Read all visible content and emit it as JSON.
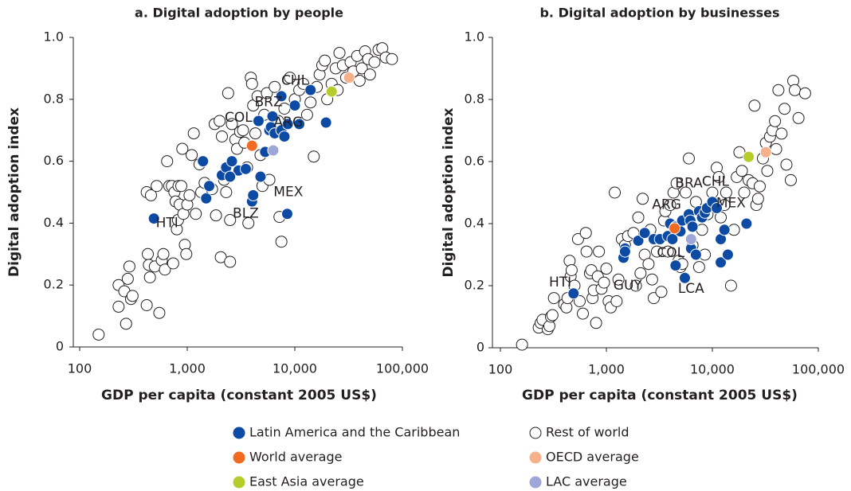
{
  "chart_data": [
    {
      "type": "scatter",
      "title": "a. Digital adoption by people",
      "xlabel": "GDP per capita (constant 2005 US$)",
      "ylabel": "Digital adoption index",
      "xscale": "log",
      "xlim": [
        100,
        100000
      ],
      "xticks": [
        100,
        {
          "value": 1000,
          "label": "1,000"
        },
        {
          "value": 10000,
          "label": "10,000"
        },
        {
          "value": 100000,
          "label": "100,000"
        }
      ],
      "ylim": [
        0,
        1
      ],
      "yticks": [
        0,
        0.2,
        0.4,
        0.6,
        0.8,
        {
          "value": 1,
          "label": "1.0"
        }
      ],
      "series": [
        {
          "name": "Latin America and the Caribbean",
          "color": "#0d4aa3",
          "x": [
            490,
            1400,
            1500,
            1600,
            2100,
            2300,
            3000,
            3500,
            4000,
            4100,
            4800,
            4600,
            5300,
            5800,
            6000,
            6200,
            6500,
            7500,
            8000,
            8600,
            10000,
            11000,
            8500,
            7500,
            14000,
            19500,
            2600,
            2500
          ],
          "y": [
            0.415,
            0.6,
            0.48,
            0.52,
            0.555,
            0.58,
            0.57,
            0.575,
            0.47,
            0.49,
            0.55,
            0.73,
            0.63,
            0.7,
            0.71,
            0.745,
            0.69,
            0.7,
            0.68,
            0.72,
            0.78,
            0.72,
            0.43,
            0.81,
            0.83,
            0.725,
            0.6,
            0.55
          ]
        },
        {
          "name": "Rest of world",
          "color": "#ffffff",
          "x": [
            150,
            230,
            230,
            260,
            270,
            280,
            290,
            300,
            310,
            420,
            420,
            430,
            440,
            450,
            460,
            500,
            520,
            550,
            580,
            600,
            620,
            650,
            680,
            720,
            740,
            760,
            780,
            800,
            820,
            830,
            850,
            880,
            900,
            920,
            950,
            980,
            1000,
            1050,
            1100,
            1150,
            1200,
            1300,
            1350,
            1450,
            1700,
            1800,
            1850,
            2000,
            2050,
            2100,
            2200,
            2300,
            2400,
            2500,
            2500,
            2600,
            2800,
            2900,
            3100,
            3300,
            3400,
            3600,
            3700,
            3900,
            4000,
            4100,
            4300,
            4500,
            4800,
            5000,
            5200,
            5500,
            5800,
            6500,
            7000,
            7200,
            7500,
            8000,
            9000,
            10000,
            11000,
            12000,
            13000,
            14000,
            15000,
            16000,
            17000,
            18000,
            19000,
            20000,
            22000,
            24000,
            25000,
            26000,
            28000,
            30000,
            33000,
            35000,
            38000,
            40000,
            42000,
            45000,
            48000,
            50000,
            55000,
            60000,
            65000,
            70000,
            80000
          ],
          "y": [
            0.04,
            0.13,
            0.2,
            0.18,
            0.075,
            0.22,
            0.26,
            0.155,
            0.165,
            0.5,
            0.135,
            0.3,
            0.265,
            0.225,
            0.49,
            0.26,
            0.52,
            0.11,
            0.28,
            0.3,
            0.25,
            0.6,
            0.52,
            0.52,
            0.27,
            0.5,
            0.47,
            0.38,
            0.41,
            0.52,
            0.46,
            0.52,
            0.64,
            0.43,
            0.33,
            0.3,
            0.46,
            0.49,
            0.62,
            0.69,
            0.43,
            0.59,
            0.5,
            0.53,
            0.51,
            0.72,
            0.425,
            0.73,
            0.29,
            0.68,
            0.54,
            0.5,
            0.82,
            0.275,
            0.41,
            0.72,
            0.67,
            0.64,
            0.695,
            0.7,
            0.66,
            0.58,
            0.4,
            0.87,
            0.85,
            0.78,
            0.69,
            0.81,
            0.62,
            0.52,
            0.75,
            0.82,
            0.54,
            0.84,
            0.73,
            0.42,
            0.34,
            0.77,
            0.87,
            0.8,
            0.83,
            0.85,
            0.75,
            0.79,
            0.615,
            0.84,
            0.88,
            0.91,
            0.925,
            0.8,
            0.85,
            0.9,
            0.83,
            0.95,
            0.91,
            0.87,
            0.92,
            0.89,
            0.94,
            0.86,
            0.9,
            0.955,
            0.93,
            0.88,
            0.92,
            0.96,
            0.965,
            0.935,
            0.93
          ]
        },
        {
          "name": "World average",
          "color": "#f26a21",
          "x": [
            4000
          ],
          "y": [
            0.65
          ]
        },
        {
          "name": "OECD average",
          "color": "#f6b08a",
          "x": [
            32000
          ],
          "y": [
            0.87
          ]
        },
        {
          "name": "East Asia average",
          "color": "#b5cc2a",
          "x": [
            22000
          ],
          "y": [
            0.825
          ]
        },
        {
          "name": "LAC average",
          "color": "#9fa6d8",
          "x": [
            6300
          ],
          "y": [
            0.635
          ]
        }
      ],
      "annotations": [
        {
          "text": "CHL",
          "x": 10000,
          "y": 0.86
        },
        {
          "text": "BRZ",
          "x": 5700,
          "y": 0.79
        },
        {
          "text": "COL",
          "x": 3000,
          "y": 0.74
        },
        {
          "text": "ARG",
          "x": 8700,
          "y": 0.725
        },
        {
          "text": "MEX",
          "x": 8700,
          "y": 0.5
        },
        {
          "text": "BLZ",
          "x": 3500,
          "y": 0.43
        },
        {
          "text": "HTI",
          "x": 650,
          "y": 0.4
        }
      ]
    },
    {
      "type": "scatter",
      "title": "b. Digital adoption by businesses",
      "xlabel": "GDP per capita (constant 2005 US$)",
      "ylabel": "Digital adoption index",
      "xscale": "log",
      "xlim": [
        100,
        100000
      ],
      "xticks": [
        100,
        {
          "value": 1000,
          "label": "1,000"
        },
        {
          "value": 10000,
          "label": "10,000"
        },
        {
          "value": 100000,
          "label": "100,000"
        }
      ],
      "ylim": [
        0,
        1
      ],
      "yticks": [
        0,
        0.2,
        0.4,
        0.6,
        0.8,
        {
          "value": 1,
          "label": "1.0"
        }
      ],
      "series": [
        {
          "color": "#0d4aa3",
          "x": [
            490,
            1450,
            1500,
            1500,
            2000,
            2300,
            2800,
            3200,
            3800,
            4000,
            4200,
            4500,
            4500,
            5000,
            5200,
            5500,
            6000,
            6200,
            6300,
            6500,
            7000,
            7500,
            8000,
            8500,
            8900,
            10000,
            11000,
            12000,
            12000,
            13000,
            14000,
            21000
          ],
          "y": [
            0.175,
            0.29,
            0.32,
            0.31,
            0.345,
            0.37,
            0.35,
            0.35,
            0.36,
            0.4,
            0.35,
            0.265,
            0.39,
            0.375,
            0.41,
            0.225,
            0.43,
            0.41,
            0.32,
            0.39,
            0.3,
            0.44,
            0.42,
            0.435,
            0.45,
            0.47,
            0.45,
            0.35,
            0.275,
            0.38,
            0.3,
            0.4
          ]
        },
        {
          "color": "#ffffff",
          "x": [
            160,
            230,
            240,
            250,
            280,
            290,
            300,
            310,
            320,
            400,
            420,
            430,
            450,
            460,
            470,
            500,
            540,
            560,
            600,
            640,
            650,
            700,
            720,
            740,
            760,
            800,
            830,
            850,
            900,
            950,
            1000,
            1050,
            1100,
            1200,
            1250,
            1300,
            1400,
            1500,
            1600,
            1800,
            1900,
            2000,
            2100,
            2200,
            2300,
            2500,
            2600,
            2700,
            2800,
            3000,
            3300,
            3500,
            3600,
            3800,
            4000,
            4300,
            4600,
            4800,
            5000,
            5200,
            5600,
            6000,
            6500,
            7000,
            7500,
            8000,
            8500,
            9000,
            10000,
            11000,
            11500,
            12000,
            13000,
            13500,
            15000,
            16000,
            17000,
            18000,
            19000,
            20000,
            22000,
            24000,
            25000,
            26000,
            27000,
            28000,
            30000,
            32000,
            33000,
            35000,
            37000,
            39000,
            40000,
            42000,
            45000,
            48000,
            50000,
            55000,
            58000,
            60000,
            65000,
            75000
          ],
          "y": [
            0.01,
            0.065,
            0.08,
            0.09,
            0.06,
            0.07,
            0.1,
            0.105,
            0.16,
            0.14,
            0.13,
            0.16,
            0.28,
            0.23,
            0.25,
            0.2,
            0.35,
            0.15,
            0.11,
            0.37,
            0.31,
            0.24,
            0.25,
            0.16,
            0.185,
            0.08,
            0.23,
            0.31,
            0.19,
            0.21,
            0.255,
            0.15,
            0.13,
            0.5,
            0.15,
            0.22,
            0.35,
            0.33,
            0.36,
            0.37,
            0.2,
            0.42,
            0.24,
            0.48,
            0.3,
            0.27,
            0.38,
            0.22,
            0.16,
            0.31,
            0.18,
            0.41,
            0.44,
            0.31,
            0.46,
            0.5,
            0.53,
            0.28,
            0.26,
            0.27,
            0.5,
            0.61,
            0.33,
            0.47,
            0.26,
            0.38,
            0.3,
            0.43,
            0.5,
            0.58,
            0.55,
            0.42,
            0.46,
            0.5,
            0.2,
            0.38,
            0.55,
            0.63,
            0.57,
            0.5,
            0.54,
            0.53,
            0.78,
            0.46,
            0.48,
            0.52,
            0.61,
            0.66,
            0.57,
            0.68,
            0.7,
            0.73,
            0.64,
            0.83,
            0.69,
            0.77,
            0.59,
            0.54,
            0.86,
            0.83,
            0.74,
            0.82
          ]
        },
        {
          "color": "#f26a21",
          "x": [
            4400
          ],
          "y": [
            0.385
          ]
        },
        {
          "color": "#f6b08a",
          "x": [
            32000
          ],
          "y": [
            0.63
          ]
        },
        {
          "color": "#b5cc2a",
          "x": [
            22000
          ],
          "y": [
            0.615
          ]
        },
        {
          "color": "#9fa6d8",
          "x": [
            6300
          ],
          "y": [
            0.35
          ]
        }
      ],
      "annotations": [
        {
          "text": "HTI",
          "x": 367,
          "y": 0.21
        },
        {
          "text": "GUY",
          "x": 1590,
          "y": 0.2
        },
        {
          "text": "COL",
          "x": 4050,
          "y": 0.305
        },
        {
          "text": "LCA",
          "x": 6300,
          "y": 0.19
        },
        {
          "text": "ARG",
          "x": 3700,
          "y": 0.46
        },
        {
          "text": "BRA",
          "x": 6000,
          "y": 0.53
        },
        {
          "text": "CHL",
          "x": 10700,
          "y": 0.535
        },
        {
          "text": "MEX",
          "x": 15000,
          "y": 0.465
        }
      ]
    }
  ]
}
